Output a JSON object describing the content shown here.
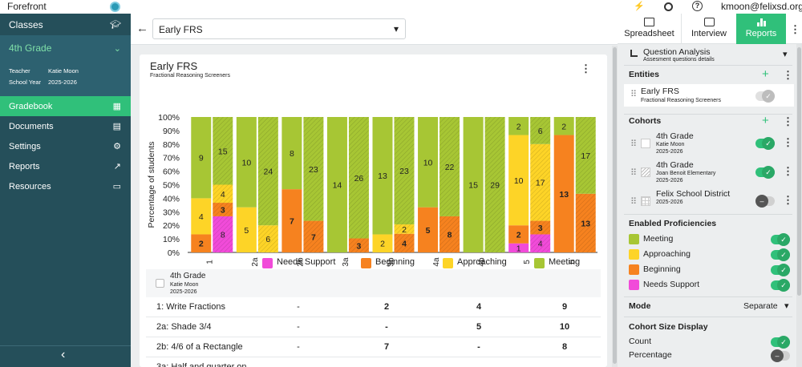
{
  "app": {
    "name": "Forefront",
    "user": "kmoon@felixsd.org"
  },
  "nav": {
    "classes": "Classes",
    "class_name": "4th Grade",
    "teacher_label": "Teacher",
    "teacher": "Katie Moon",
    "year_label": "School Year",
    "year": "2025-2026",
    "items": [
      {
        "label": "Gradebook"
      },
      {
        "label": "Documents"
      },
      {
        "label": "Settings"
      },
      {
        "label": "Reports"
      },
      {
        "label": "Resources"
      }
    ],
    "collapse": "‹"
  },
  "assessment_select": "Early FRS",
  "card": {
    "title": "Early FRS",
    "subtitle": "Fractional Reasoning Screeners"
  },
  "chart_data": {
    "type": "bar",
    "stacked": true,
    "ylabel": "Percentage of students",
    "yticks": [
      "0%",
      "10%",
      "20%",
      "30%",
      "40%",
      "50%",
      "60%",
      "70%",
      "80%",
      "90%",
      "100%"
    ],
    "ylim": [
      0,
      100
    ],
    "categories": [
      "1",
      "2a",
      "2b",
      "3a",
      "3b",
      "4a",
      "4b",
      "5",
      "6"
    ],
    "legend": [
      "Needs Support",
      "Beginning",
      "Approaching",
      "Meeting"
    ],
    "colors": {
      "Needs Support": "#f14bd9",
      "Beginning": "#f6821f",
      "Approaching": "#fdd427",
      "Meeting": "#a7c634"
    },
    "groups": [
      {
        "cohort": "4th Grade",
        "counts": [
          [
            0,
            2,
            4,
            9
          ],
          [
            0,
            0,
            5,
            10
          ],
          [
            0,
            7,
            0,
            8
          ],
          [
            0,
            0,
            0,
            14
          ],
          [
            0,
            0,
            2,
            13
          ],
          [
            0,
            5,
            0,
            10
          ],
          [
            0,
            0,
            0,
            15
          ],
          [
            1,
            2,
            10,
            2
          ],
          [
            0,
            13,
            0,
            2
          ]
        ]
      },
      {
        "cohort": "4th Grade (Joan Benoit Elementary)",
        "counts": [
          [
            8,
            3,
            4,
            15
          ],
          [
            0,
            0,
            6,
            24
          ],
          [
            0,
            7,
            0,
            23
          ],
          [
            0,
            3,
            0,
            26
          ],
          [
            0,
            4,
            2,
            23
          ],
          [
            0,
            8,
            0,
            22
          ],
          [
            0,
            0,
            0,
            29
          ],
          [
            4,
            3,
            17,
            6
          ],
          [
            0,
            13,
            0,
            17
          ]
        ]
      }
    ]
  },
  "table": {
    "cohort_name": "4th Grade",
    "cohort_teacher": "Katie Moon",
    "cohort_year": "2025-2026",
    "rows": [
      {
        "label": "1: Write Fractions",
        "cells": [
          "-",
          "2",
          "4",
          "9"
        ]
      },
      {
        "label": "2a: Shade 3/4",
        "cells": [
          "-",
          "-",
          "5",
          "10"
        ]
      },
      {
        "label": "2b: 4/6 of a Rectangle",
        "cells": [
          "-",
          "7",
          "-",
          "8"
        ]
      },
      {
        "label": "3a: Half and quarter on",
        "cells": [
          "",
          "",
          "",
          ""
        ]
      }
    ]
  },
  "tabs": [
    {
      "label": "Spreadsheet"
    },
    {
      "label": "Interview"
    },
    {
      "label": "Reports"
    }
  ],
  "report_select": {
    "title": "Question Analysis",
    "subtitle": "Assesment questions details"
  },
  "entities": {
    "header": "Entities",
    "name": "Early FRS",
    "sub": "Fractional Reasoning Screeners"
  },
  "cohorts": {
    "header": "Cohorts",
    "items": [
      {
        "name": "4th Grade",
        "line1": "Katie Moon",
        "line2": "2025-2026",
        "on": true
      },
      {
        "name": "4th Grade",
        "line1": "Joan Benoit Elementary",
        "line2": "2025-2026",
        "on": true
      },
      {
        "name": "Felix School District",
        "line1": "2025-2026",
        "line2": "",
        "on": false
      }
    ]
  },
  "proficiencies": {
    "header": "Enabled Proficiencies",
    "items": [
      {
        "label": "Meeting",
        "color": "#a7c634"
      },
      {
        "label": "Approaching",
        "color": "#fdd427"
      },
      {
        "label": "Beginning",
        "color": "#f6821f"
      },
      {
        "label": "Needs Support",
        "color": "#f14bd9"
      }
    ]
  },
  "mode": {
    "label": "Mode",
    "value": "Separate"
  },
  "size_display": {
    "header": "Cohort Size Display",
    "count": "Count",
    "percentage": "Percentage"
  },
  "icons": {
    "bolt": "⚡",
    "help": "?",
    "back": "←",
    "caret": "▾",
    "plus": "+",
    "grip": "⠿",
    "more": "⋮"
  }
}
